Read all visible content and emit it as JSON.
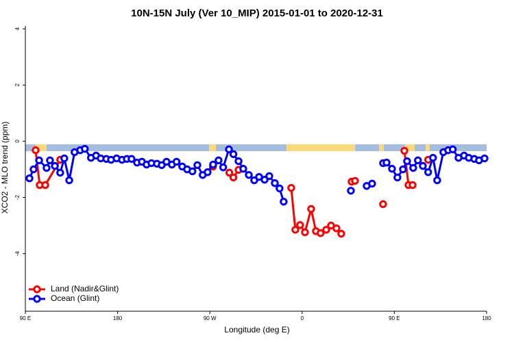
{
  "chart_data": {
    "type": "line",
    "title": "10N-15N July (Ver 10_MIP)   2015-01-01 to 2020-12-31",
    "x_label": "Longitude (deg E)",
    "y_label": "XCO2 - MLO trend (ppm)",
    "xlim": [
      90,
      540
    ],
    "ylim": [
      -6,
      4.1
    ],
    "xticks": [
      {
        "value": 90,
        "label": "90 E"
      },
      180,
      {
        "value": 270,
        "label": "90 W"
      },
      {
        "value": 360,
        "label": "0"
      },
      {
        "value": 450,
        "label": "90 E"
      },
      {
        "value": 540,
        "label": "180"
      }
    ],
    "yticks": [
      -4,
      -2,
      0,
      2,
      4
    ],
    "legend": "bottom-left",
    "series": [
      {
        "name": "Land (Nadir&Glint)",
        "color": "#ff0000",
        "x": [
          100,
          104,
          109.4,
          124,
          273,
          289,
          293,
          298,
          349.4,
          353.4,
          358,
          362.8,
          368.8,
          373.5,
          378,
          383.5,
          388.2,
          393.5,
          398.2,
          408.3,
          411.6,
          439,
          459.8,
          463.8,
          467.8,
          483
        ],
        "values": [
          -0.32,
          -1.56,
          -1.56,
          -0.66,
          -0.9,
          -1.12,
          -1.29,
          -1.02,
          -1.66,
          -3.15,
          -2.98,
          -3.24,
          -2.41,
          -3.2,
          -3.27,
          -3.15,
          -3.0,
          -3.1,
          -3.29,
          -1.44,
          -1.41,
          -2.24,
          -0.34,
          -1.56,
          -1.56,
          -0.66
        ],
        "breaks_after": [
          3,
          4,
          7,
          18,
          20,
          21,
          24
        ]
      },
      {
        "name": "Ocean (Glint)",
        "color": "#0000ff",
        "x": [
          94,
          98,
          103.4,
          110.7,
          114,
          118.8,
          124,
          128,
          132.8,
          138,
          143.5,
          148,
          154,
          159,
          163.5,
          169,
          173.6,
          179,
          184.3,
          189,
          193.6,
          199,
          203.7,
          208.3,
          213,
          218.4,
          223,
          227.7,
          233,
          237.5,
          243,
          247.8,
          253,
          257.8,
          263,
          267.8,
          273.2,
          278.5,
          283,
          288.6,
          293,
          298,
          302.6,
          308,
          313.3,
          318,
          323.4,
          328,
          333.4,
          338,
          342,
          407.6,
          423,
          428.3,
          439,
          442.4,
          447.7,
          453,
          458.4,
          462.4,
          468.4,
          473,
          477.8,
          483,
          487.7,
          491.8,
          497.8,
          502.5,
          507,
          512.6,
          518,
          522.6,
          528,
          532.6,
          538
        ],
        "values": [
          -1.32,
          -1.0,
          -0.68,
          -0.95,
          -0.68,
          -0.88,
          -1.12,
          -0.61,
          -1.39,
          -0.39,
          -0.32,
          -0.27,
          -0.59,
          -0.51,
          -0.61,
          -0.63,
          -0.66,
          -0.61,
          -0.66,
          -0.63,
          -0.63,
          -0.76,
          -0.73,
          -0.83,
          -0.78,
          -0.8,
          -0.85,
          -0.73,
          -0.83,
          -0.73,
          -0.9,
          -1.0,
          -1.07,
          -0.85,
          -1.2,
          -1.1,
          -0.83,
          -0.68,
          -0.93,
          -0.29,
          -0.46,
          -0.71,
          -0.98,
          -1.2,
          -1.39,
          -1.27,
          -1.37,
          -1.24,
          -1.49,
          -1.68,
          -2.15,
          -1.76,
          -1.59,
          -1.51,
          -0.78,
          -0.76,
          -0.98,
          -1.29,
          -1.0,
          -0.71,
          -0.95,
          -0.68,
          -0.88,
          -1.1,
          -0.59,
          -1.39,
          -0.39,
          -0.32,
          -0.29,
          -0.59,
          -0.51,
          -0.59,
          -0.63,
          -0.68,
          -0.61
        ],
        "breaks_after": [
          50,
          51,
          53
        ]
      }
    ]
  }
}
